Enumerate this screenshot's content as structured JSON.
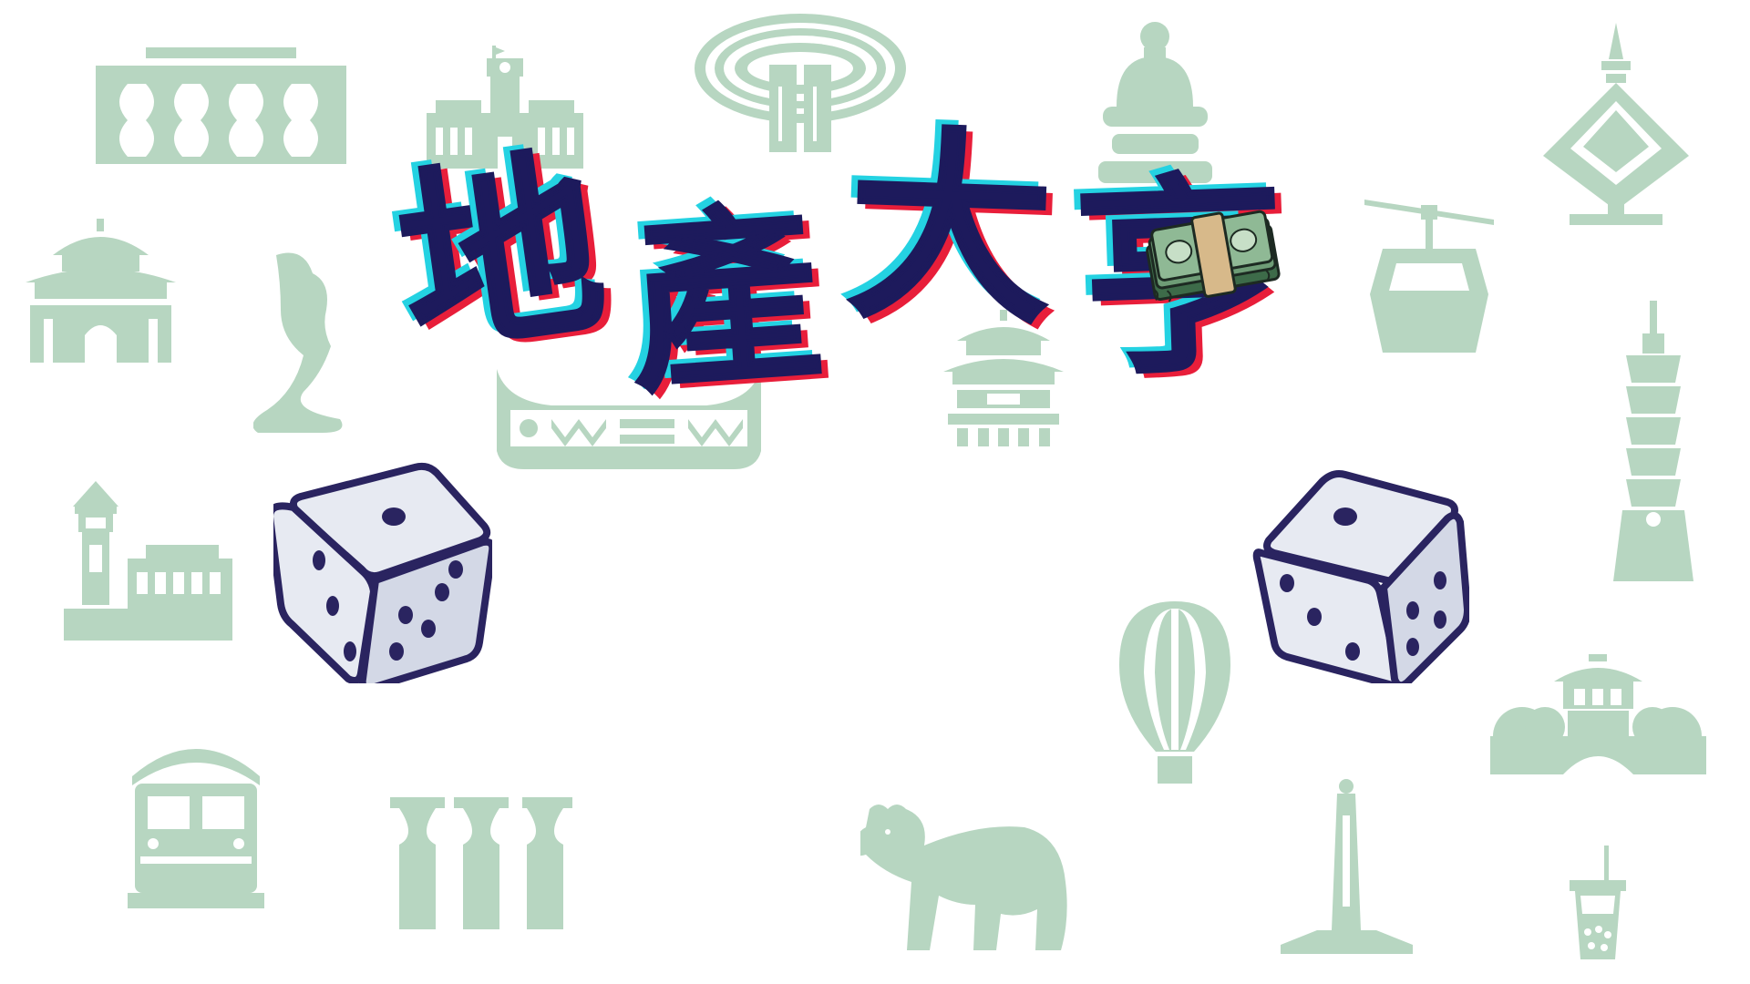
{
  "title": {
    "char_1": "地",
    "char_2": "產",
    "char_3": "大",
    "char_4": "亨"
  },
  "colors": {
    "background": "#ffffff",
    "landmark_fill": "#b7d6c1",
    "title_ink": "#1d1a5c",
    "title_shadow_cyan": "#24d2e2",
    "title_shadow_red": "#e81e3a",
    "die_face": "#e7eaf2",
    "die_outline": "#2a2460",
    "money_green": "#5f8f6a",
    "money_band": "#d7b98a"
  },
  "icons": {
    "landmarks": [
      "station-building-icon",
      "presidential-office-icon",
      "stadium-dome-icon",
      "buddha-statue-icon",
      "pagoda-tower-icon",
      "memorial-hall-icon",
      "queens-head-rock-icon",
      "canoe-boat-icon",
      "temple-pavilion-icon",
      "cable-car-icon",
      "taipei-101-icon",
      "lighthouse-fort-icon",
      "hot-air-balloon-icon",
      "bridge-pavilion-icon",
      "train-icon",
      "stone-pillars-icon",
      "formosan-bear-icon",
      "monument-tower-icon",
      "bubble-tea-icon"
    ],
    "dice": [
      "die-left-icon",
      "die-right-icon"
    ],
    "money": "money-stack-icon"
  }
}
